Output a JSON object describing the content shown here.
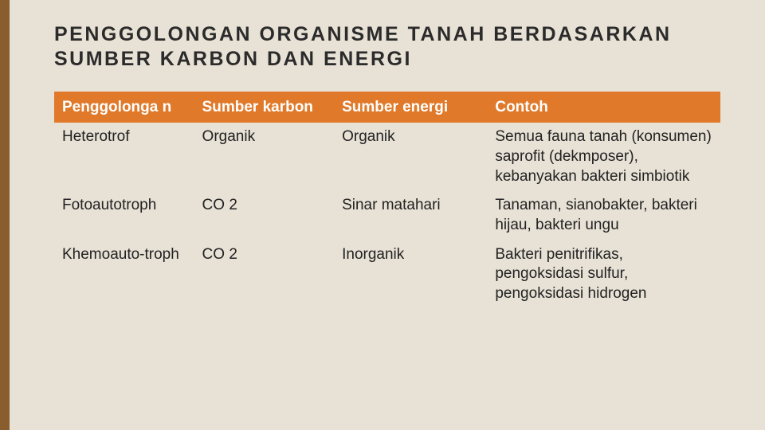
{
  "page": {
    "title": "PENGGOLONGAN ORGANISME TANAH BERDASARKAN SUMBER KARBON DAN ENERGI",
    "background_color": "#e8e2d6",
    "accent_bar_color": "#8a5d2e",
    "title_fontsize": 25,
    "title_letter_spacing": 2.5,
    "title_color": "#2b2b2b"
  },
  "table": {
    "type": "table",
    "header_bg": "#e07a2a",
    "header_fg": "#ffffff",
    "cell_fontsize": 19,
    "header_fontsize": 19,
    "column_widths_pct": [
      21,
      21,
      23,
      35
    ],
    "columns": [
      "Penggolonga n",
      "Sumber karbon",
      "Sumber energi",
      "Contoh"
    ],
    "rows": [
      {
        "c0": "Heterotrof",
        "c1": "Organik",
        "c2": "Organik",
        "c3": "Semua fauna tanah (konsumen) saprofit (dekmposer), kebanyakan bakteri simbiotik"
      },
      {
        "c0": "Fotoautotroph",
        "c1": "CO 2",
        "c2": "Sinar matahari",
        "c3": "Tanaman, sianobakter, bakteri hijau, bakteri ungu"
      },
      {
        "c0": "Khemoauto-troph",
        "c1": "CO 2",
        "c2": "Inorganik",
        "c3": "Bakteri penitrifikas, pengoksidasi sulfur, pengoksidasi hidrogen"
      }
    ]
  }
}
